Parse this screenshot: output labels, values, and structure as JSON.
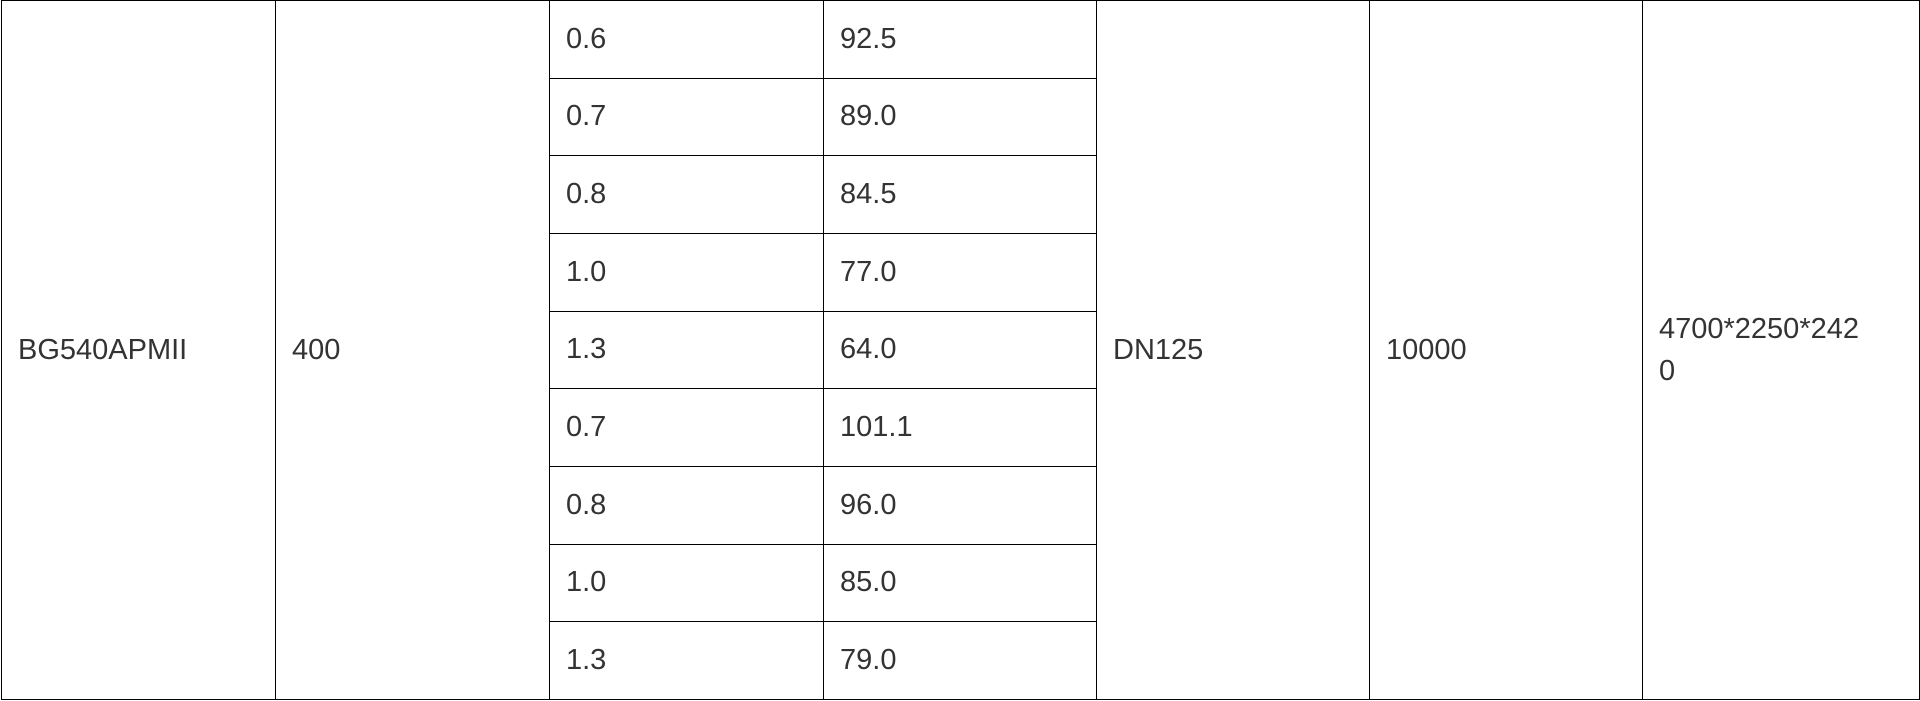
{
  "table": {
    "model": "BG540APMII",
    "col2": "400",
    "rows": [
      {
        "pressure": "0.6",
        "flow": "92.5"
      },
      {
        "pressure": "0.7",
        "flow": "89.0"
      },
      {
        "pressure": "0.8",
        "flow": "84.5"
      },
      {
        "pressure": "1.0",
        "flow": "77.0"
      },
      {
        "pressure": "1.3",
        "flow": "64.0"
      },
      {
        "pressure": "0.7",
        "flow": "101.1"
      },
      {
        "pressure": "0.8",
        "flow": "96.0"
      },
      {
        "pressure": "1.0",
        "flow": "85.0"
      },
      {
        "pressure": "1.3",
        "flow": "79.0"
      }
    ],
    "outlet": "DN125",
    "col6": "10000",
    "dimensions": "4700*2250*2420"
  }
}
